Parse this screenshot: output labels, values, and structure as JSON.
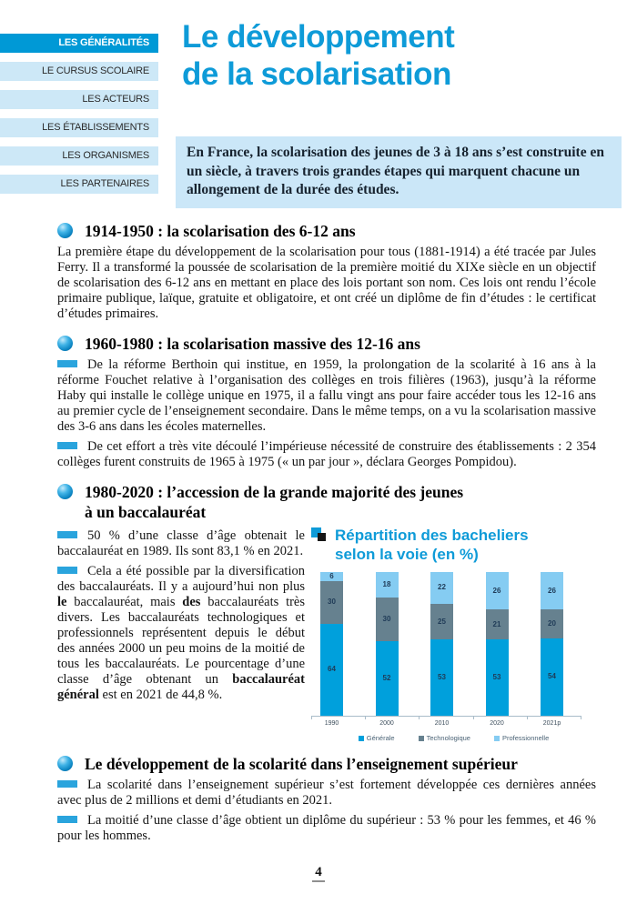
{
  "sidebar": {
    "items": [
      {
        "label": "LES GÉNÉRALITÉS",
        "active": true
      },
      {
        "label": "LE CURSUS SCOLAIRE",
        "active": false
      },
      {
        "label": "LES ACTEURS",
        "active": false
      },
      {
        "label": "LES ÉTABLISSEMENTS",
        "active": false
      },
      {
        "label": "LES ORGANISMES",
        "active": false
      },
      {
        "label": "LES PARTENAIRES",
        "active": false
      }
    ]
  },
  "header": {
    "title_line1": "Le développement",
    "title_line2": "de la scolarisation"
  },
  "intro": {
    "text": "En France, la scolarisation des jeunes de 3 à 18 ans s’est construite en un siècle, à travers trois grandes étapes qui marquent chacune un allongement de la durée des études."
  },
  "sections": {
    "s1": {
      "title": "1914-1950 : la scolarisation des 6-12 ans",
      "body": "La première étape du développement de la scolarisation pour tous (1881-1914) a été tracée par Jules Ferry. Il a transformé la poussée de scolarisation de la première moitié du XIXe siècle en un objectif de scolarisation des 6-12 ans en mettant en place des lois portant son nom. Ces lois ont rendu l’école primaire publique, laïque, gratuite et obligatoire, et ont créé un diplôme de fin d’études : le certificat d’études primaires."
    },
    "s2": {
      "title": "1960-1980 : la scolarisation massive des 12-16 ans",
      "p1": "De la réforme Berthoin qui institue, en 1959, la prolongation de la scolarité à 16 ans à la réforme Fouchet relative à l’organisation des collèges en trois filières (1963), jusqu’à la réforme Haby qui installe le collège unique en 1975, il a fallu vingt ans pour faire accéder tous les 12-16 ans au premier cycle de l’enseignement secondaire. Dans le même temps, on a vu la scolarisation massive des 3-6 ans dans les écoles maternelles.",
      "p2": "De cet effort a très vite découlé l’impérieuse nécessité de construire des établissements : 2 354 collèges furent construits de 1965 à 1975 (« un par jour », déclara Georges Pompidou)."
    },
    "s3": {
      "title_line1": "1980-2020 : l’accession de la grande majorité des jeunes",
      "title_line2": "à un baccalauréat",
      "p1": "50 % d’une classe d’âge obtenait le baccalauréat en 1989. Ils sont 83,1 % en 2021.",
      "p2_segments": [
        {
          "text": "Cela a été possible par la diversification des baccalauréats. Il y a aujourd’hui non plus ",
          "bold": false
        },
        {
          "text": "le",
          "bold": true
        },
        {
          "text": " baccalauréat, mais ",
          "bold": false
        },
        {
          "text": "des",
          "bold": true
        },
        {
          "text": " baccalauréats très divers. Les baccalauréats technologiques et professionnels représentent depuis le début des années 2000 un peu moins de la moitié de tous les baccalauréats. Le pourcentage d’une classe d’âge obtenant un ",
          "bold": false
        },
        {
          "text": "baccalauréat général",
          "bold": true
        },
        {
          "text": " est en 2021 de 44,8 %.",
          "bold": false
        }
      ]
    },
    "s4": {
      "title": "Le développement de la scolarité dans l’enseignement supérieur",
      "p1": "La scolarité dans l’enseignement supérieur s’est fortement développée ces dernières années avec plus de 2 millions et demi d’étudiants en 2021.",
      "p2": "La moitié d’une classe d’âge obtient un diplôme du supérieur : 53 % pour les femmes, et 46 % pour les hommes."
    }
  },
  "chart_data": {
    "type": "bar",
    "stacked": true,
    "title": "Répartition des bacheliers selon la voie (en %)",
    "categories": [
      "1990",
      "2000",
      "2010",
      "2020",
      "2021p"
    ],
    "series": [
      {
        "name": "Générale",
        "color": "#00a0dc",
        "values": [
          64,
          52,
          53,
          53,
          54
        ]
      },
      {
        "name": "Technologique",
        "color": "#66818f",
        "values": [
          30,
          30,
          25,
          21,
          20
        ]
      },
      {
        "name": "Professionnelle",
        "color": "#85ccf2",
        "values": [
          6,
          18,
          22,
          26,
          26
        ]
      }
    ],
    "ylim": [
      0,
      100
    ],
    "grid": false,
    "legend_position": "bottom",
    "value_labels": true
  },
  "footer": {
    "page_number": "4"
  },
  "colors": {
    "accent_blue": "#0e9bd8",
    "sidebar_active_bg": "#0099d6",
    "sidebar_inactive_bg": "#cde8f7",
    "intro_bg": "#cbe7f8",
    "dash_blue": "#2aa4dd",
    "chart_label": "#1f3b57"
  }
}
